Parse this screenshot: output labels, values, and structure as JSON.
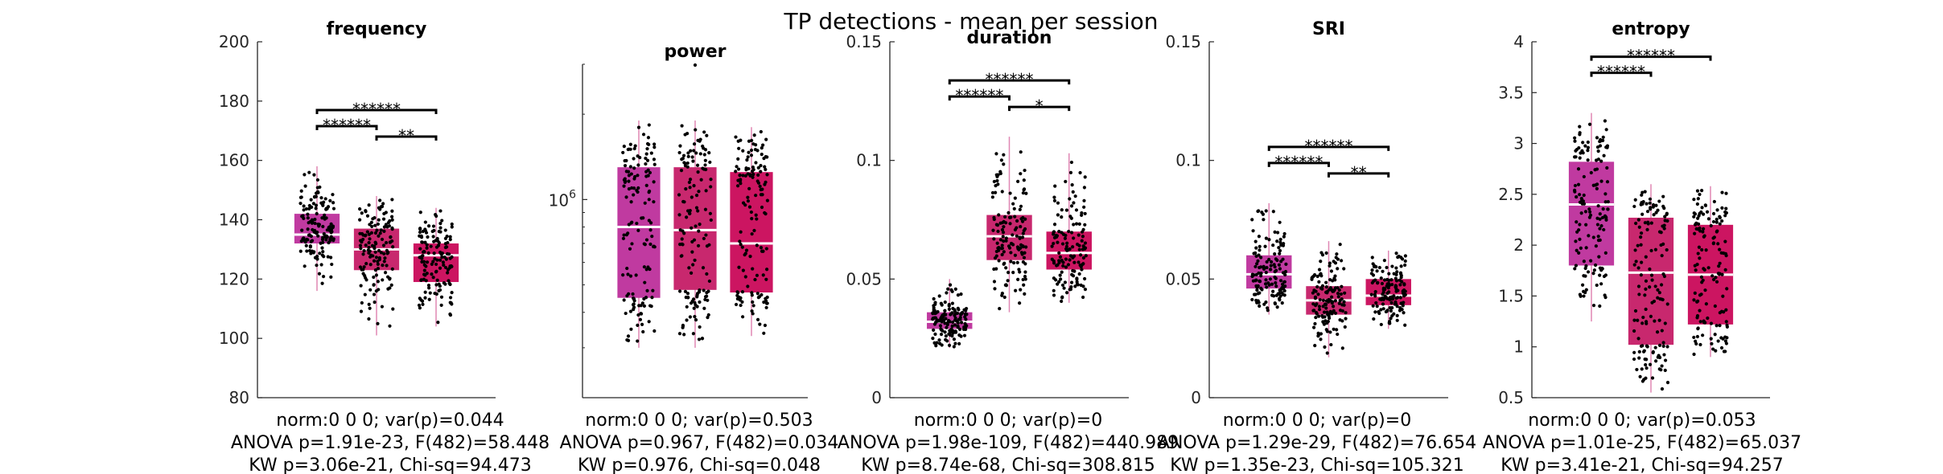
{
  "figure_title": "TP detections - mean per session",
  "colors": {
    "g1": "#c03aa0",
    "g2": "#c8286e",
    "g3": "#cc1561",
    "median": "#ffffff",
    "whisker": "#e087b4",
    "point": "#000000",
    "axis": "#262626"
  },
  "chart_data": [
    {
      "type": "box",
      "title": "frequency",
      "ylim": [
        80,
        200
      ],
      "yticks": [
        "80",
        "100",
        "120",
        "140",
        "160",
        "180",
        "200"
      ],
      "groups": [
        {
          "q1": 132,
          "median": 135,
          "q3": 142,
          "min": 116,
          "max": 158
        },
        {
          "q1": 123,
          "median": 130,
          "q3": 137,
          "min": 101,
          "max": 148
        },
        {
          "q1": 119,
          "median": 128,
          "q3": 132,
          "min": 104,
          "max": 144
        }
      ],
      "brackets": [
        {
          "from": 1,
          "to": 3,
          "label": "******"
        },
        {
          "from": 1,
          "to": 2,
          "label": "******"
        },
        {
          "from": 2,
          "to": 3,
          "label": "**"
        }
      ],
      "stats": [
        "norm:0  0  0; var(p)=0.044",
        "ANOVA p=1.91e-23, F(482)=58.448",
        "KW p=3.06e-21, Chi-sq=94.473"
      ]
    },
    {
      "type": "box",
      "title": "power",
      "scale": "log",
      "yticks": [
        "10^6"
      ],
      "groups": [
        {
          "q1": 0.45,
          "median": 0.8,
          "q3": 1.3,
          "min": 0.3,
          "max": 1.9
        },
        {
          "q1": 0.48,
          "median": 0.78,
          "q3": 1.3,
          "min": 0.3,
          "max": 1.9
        },
        {
          "q1": 0.47,
          "median": 0.7,
          "q3": 1.25,
          "min": 0.33,
          "max": 1.8
        }
      ],
      "brackets": [],
      "stats": [
        "norm:0  0  0; var(p)=0.503",
        "ANOVA p=0.967, F(482)=0.034",
        "KW p=0.976, Chi-sq=0.048"
      ]
    },
    {
      "type": "box",
      "title": "duration",
      "ylim": [
        0,
        0.15
      ],
      "yticks": [
        "0",
        "0.05",
        "0.1",
        "0.15"
      ],
      "groups": [
        {
          "q1": 0.029,
          "median": 0.032,
          "q3": 0.036,
          "min": 0.021,
          "max": 0.05
        },
        {
          "q1": 0.058,
          "median": 0.068,
          "q3": 0.077,
          "min": 0.036,
          "max": 0.11
        },
        {
          "q1": 0.054,
          "median": 0.061,
          "q3": 0.07,
          "min": 0.04,
          "max": 0.103
        }
      ],
      "brackets": [
        {
          "from": 1,
          "to": 3,
          "label": "******"
        },
        {
          "from": 1,
          "to": 2,
          "label": "******"
        },
        {
          "from": 2,
          "to": 3,
          "label": "*"
        }
      ],
      "stats": [
        "norm:0  0  0; var(p)=0",
        "ANOVA p=1.98e-109, F(482)=440.989",
        "KW p=8.74e-68, Chi-sq=308.815"
      ]
    },
    {
      "type": "box",
      "title": "SRI",
      "ylim": [
        0,
        0.15
      ],
      "yticks": [
        "0",
        "0.05",
        "0.1",
        "0.15"
      ],
      "groups": [
        {
          "q1": 0.046,
          "median": 0.052,
          "q3": 0.06,
          "min": 0.035,
          "max": 0.082
        },
        {
          "q1": 0.035,
          "median": 0.041,
          "q3": 0.047,
          "min": 0.017,
          "max": 0.066
        },
        {
          "q1": 0.039,
          "median": 0.043,
          "q3": 0.05,
          "min": 0.029,
          "max": 0.062
        }
      ],
      "brackets": [
        {
          "from": 1,
          "to": 3,
          "label": "******"
        },
        {
          "from": 1,
          "to": 2,
          "label": "******"
        },
        {
          "from": 2,
          "to": 3,
          "label": "**"
        }
      ],
      "stats": [
        "norm:0  0  0; var(p)=0",
        "ANOVA p=1.29e-29, F(482)=76.654",
        "KW p=1.35e-23, Chi-sq=105.321"
      ]
    },
    {
      "type": "box",
      "title": "entropy",
      "ylim": [
        0.5,
        4
      ],
      "yticks": [
        "0.5",
        "1",
        "1.5",
        "2",
        "2.5",
        "3",
        "3.5",
        "4"
      ],
      "groups": [
        {
          "q1": 1.8,
          "median": 2.4,
          "q3": 2.82,
          "min": 1.25,
          "max": 3.3
        },
        {
          "q1": 1.02,
          "median": 1.73,
          "q3": 2.27,
          "min": 0.55,
          "max": 2.6
        },
        {
          "q1": 1.22,
          "median": 1.71,
          "q3": 2.2,
          "min": 0.9,
          "max": 2.58
        }
      ],
      "brackets": [
        {
          "from": 1,
          "to": 3,
          "label": "******"
        },
        {
          "from": 1,
          "to": 2,
          "label": "******"
        }
      ],
      "stats": [
        "norm:0  0  0; var(p)=0.053",
        "ANOVA p=1.01e-25, F(482)=65.037",
        "KW p=3.41e-21, Chi-sq=94.257"
      ]
    }
  ]
}
